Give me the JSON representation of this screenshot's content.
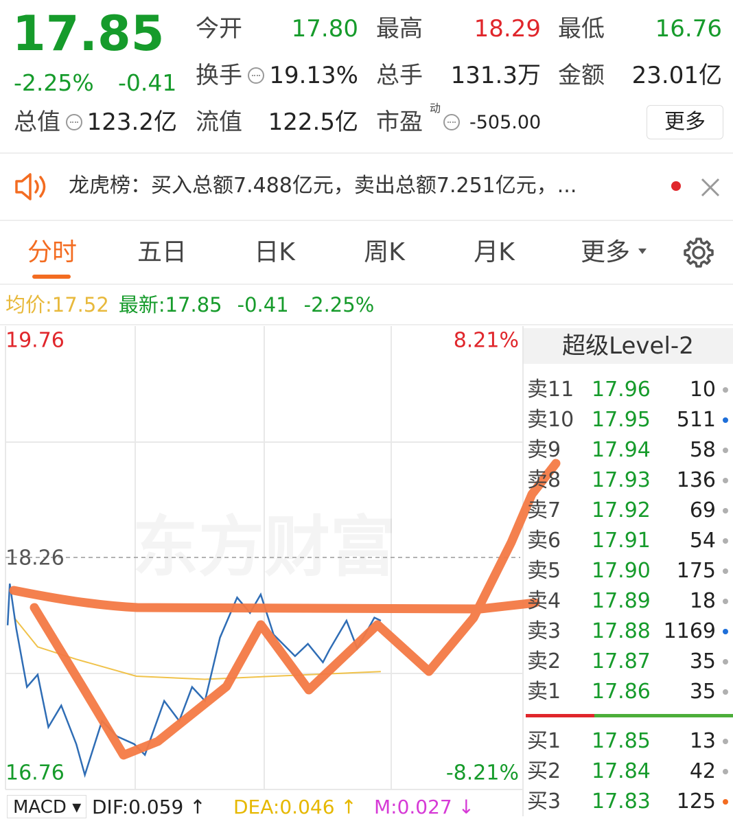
{
  "quote": {
    "price": "17.85",
    "change_pct": "-2.25%",
    "change": "-0.41",
    "stats": [
      {
        "label": "今开",
        "value": "17.80",
        "color": "#169b2b"
      },
      {
        "label": "最高",
        "value": "18.29",
        "color": "#e0262b"
      },
      {
        "label": "最低",
        "value": "16.76",
        "color": "#169b2b"
      },
      {
        "label": "换手",
        "value": "19.13%"
      },
      {
        "label": "总手",
        "value": "131.3万"
      },
      {
        "label": "金额",
        "value": "23.01亿"
      },
      {
        "label": "总值",
        "value": "123.2亿"
      },
      {
        "label": "流值",
        "value": "122.5亿"
      },
      {
        "label": "市盈",
        "sup": "动",
        "value": "-505.00"
      }
    ],
    "more_button": "更多"
  },
  "notice": {
    "text": "龙虎榜：买入总额7.488亿元，卖出总额7.251亿元，..."
  },
  "tabs": [
    "分时",
    "五日",
    "日K",
    "周K",
    "月K",
    "更多"
  ],
  "summary": {
    "avg_label": "均价:",
    "avg": "17.52",
    "last_label": "最新:",
    "last": "17.85",
    "change": "-0.41",
    "change_pct": "-2.25%"
  },
  "chart_data": {
    "type": "line",
    "xlim": [
      0,
      240
    ],
    "ylim": [
      16.76,
      19.76
    ],
    "yticks": [
      19.76,
      18.26,
      16.76
    ],
    "pct_labels": [
      "8.21%",
      "-8.21%"
    ],
    "watermark": "东方财富",
    "series": [
      {
        "color": "#2f6db5",
        "x": [
          1,
          2,
          5,
          10,
          15,
          20,
          26,
          33,
          37,
          45,
          52,
          60,
          65,
          74,
          81,
          87,
          93,
          100,
          108,
          114,
          119,
          125,
          135,
          141,
          148,
          151,
          159,
          164,
          172,
          175
        ],
        "values": [
          17.82,
          18.09,
          17.8,
          17.42,
          17.5,
          17.16,
          17.3,
          17.05,
          16.85,
          17.2,
          17.1,
          17.05,
          16.98,
          17.33,
          17.2,
          17.42,
          17.33,
          17.74,
          18.0,
          17.9,
          18.02,
          17.76,
          17.62,
          17.7,
          17.58,
          17.66,
          17.85,
          17.67,
          17.87,
          17.85
        ]
      },
      {
        "color": "#f0c24a",
        "x": [
          4,
          15,
          33,
          61,
          93,
          125,
          175
        ],
        "values": [
          17.87,
          17.68,
          17.6,
          17.49,
          17.47,
          17.49,
          17.52
        ]
      }
    ]
  },
  "order_book": {
    "title": "超级Level-2",
    "asks": [
      {
        "label": "卖11",
        "price": "17.96",
        "volume": "10",
        "dot": "#b0b0b0"
      },
      {
        "label": "卖10",
        "price": "17.95",
        "volume": "511",
        "dot": "#1e6fd9"
      },
      {
        "label": "卖9",
        "price": "17.94",
        "volume": "58",
        "dot": "#b0b0b0"
      },
      {
        "label": "卖8",
        "price": "17.93",
        "volume": "136",
        "dot": "#b0b0b0"
      },
      {
        "label": "卖7",
        "price": "17.92",
        "volume": "69",
        "dot": "#b0b0b0"
      },
      {
        "label": "卖6",
        "price": "17.91",
        "volume": "54",
        "dot": "#b0b0b0"
      },
      {
        "label": "卖5",
        "price": "17.90",
        "volume": "175",
        "dot": "#b0b0b0"
      },
      {
        "label": "卖4",
        "price": "17.89",
        "volume": "18",
        "dot": "#b0b0b0"
      },
      {
        "label": "卖3",
        "price": "17.88",
        "volume": "1169",
        "dot": "#1e6fd9"
      },
      {
        "label": "卖2",
        "price": "17.87",
        "volume": "35",
        "dot": "#b0b0b0"
      },
      {
        "label": "卖1",
        "price": "17.86",
        "volume": "35",
        "dot": "#b0b0b0"
      }
    ],
    "bids": [
      {
        "label": "买1",
        "price": "17.85",
        "volume": "13",
        "dot": "#b0b0b0"
      },
      {
        "label": "买2",
        "price": "17.84",
        "volume": "42",
        "dot": "#b0b0b0"
      },
      {
        "label": "买3",
        "price": "17.83",
        "volume": "125",
        "dot": "#f36c21"
      }
    ]
  },
  "indicator": {
    "name": "MACD",
    "dif": "DIF:0.059 ↑",
    "dea": "DEA:0.046 ↑",
    "m": "M:0.027 ↓"
  }
}
